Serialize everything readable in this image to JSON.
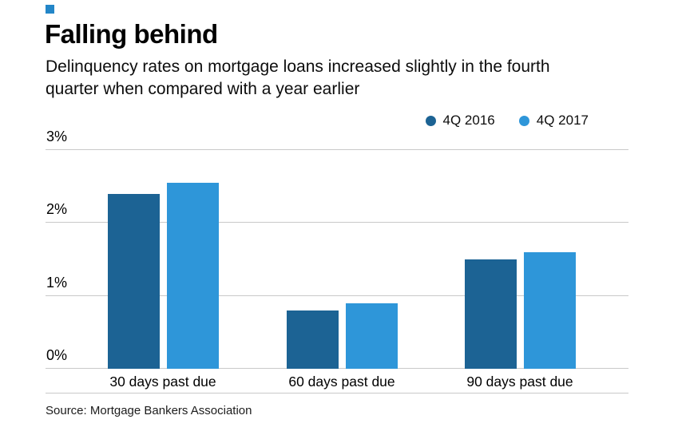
{
  "title": "Falling behind",
  "subtitle": "Delinquency rates on mortgage loans increased slightly in the fourth quarter when compared with a year earlier",
  "source": "Source: Mortgage Bankers Association",
  "brand_color": "#2386c8",
  "grid_color": "#c9c9c9",
  "chart_data": {
    "type": "bar",
    "title": "Falling behind",
    "subtitle": "Delinquency rates on mortgage loans increased slightly in the fourth quarter when compared with a year earlier",
    "categories": [
      "30 days past due",
      "60 days past due",
      "90 days past due"
    ],
    "series": [
      {
        "name": "4Q 2016",
        "color": "#1c6394",
        "values": [
          2.4,
          0.8,
          1.5
        ]
      },
      {
        "name": "4Q 2017",
        "color": "#2e96d9",
        "values": [
          2.55,
          0.9,
          1.6
        ]
      }
    ],
    "xlabel": "",
    "ylabel": "",
    "ylim": [
      0,
      3
    ],
    "yticks": [
      0,
      1,
      2,
      3
    ],
    "ytick_format": "{v}%",
    "grid": true,
    "legend_position": "top-right",
    "source": "Source: Mortgage Bankers Association"
  }
}
